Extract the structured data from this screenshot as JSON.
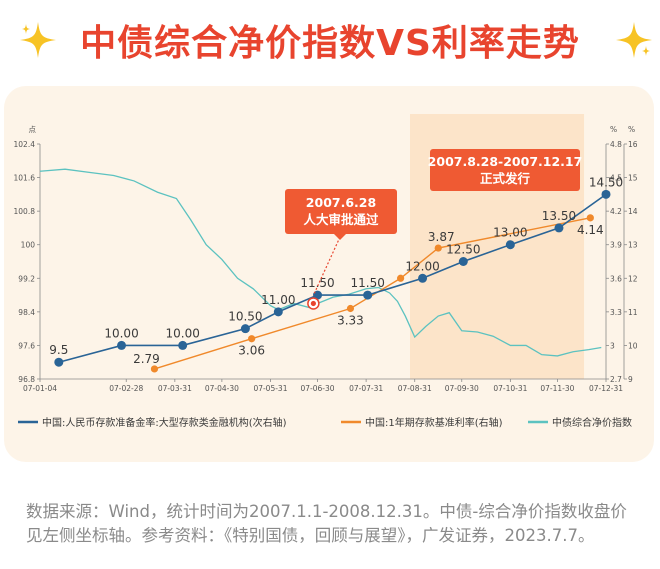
{
  "title": "中债综合净价指数VS利率走势",
  "source_text": "数据来源：Wind，统计时间为2007.1.1-2008.12.31。中债-综合净价指数收盘价见左侧坐标轴。参考资料：《特别国债，回顾与展望》，广发证券，2023.7.7。",
  "colors": {
    "title": "#e8442e",
    "blue": "#2a6496",
    "orange": "#f0892b",
    "teal": "#5cc2c0",
    "callout": "#ef5a33",
    "highlight": "#fbe1c3"
  },
  "chart_data": {
    "type": "line",
    "categories": [
      "07-01-04",
      "07-02-28",
      "07-03-31",
      "07-04-30",
      "07-05-31",
      "07-06-30",
      "07-07-31",
      "07-08-31",
      "07-09-30",
      "07-10-31",
      "07-11-30",
      "07-12-31"
    ],
    "left_axis": {
      "unit": "点",
      "ticks": [
        "96.8",
        "97.6",
        "98.4",
        "99.2",
        "100",
        "100.8",
        "101.6",
        "102.4"
      ],
      "ylim": [
        96.8,
        102.4
      ]
    },
    "right_axis_inner": {
      "unit": "%",
      "ticks": [
        "2.7",
        "3",
        "3.3",
        "3.6",
        "3.9",
        "4.2",
        "4.5",
        "4.8"
      ],
      "ylim": [
        2.7,
        4.8
      ]
    },
    "right_axis_outer": {
      "unit": "%",
      "ticks": [
        "9",
        "10",
        "11",
        "12",
        "13",
        "14",
        "15",
        "16"
      ],
      "ylim": [
        9,
        16
      ]
    },
    "series": [
      {
        "name": "中国:人民币存款准备金率:大型存款类金融机构(次右轴)",
        "axis": "right_outer",
        "x": [
          "2007-01-16",
          "2007-02-25",
          "2007-04-05",
          "2007-05-15",
          "2007-06-05",
          "2007-06-30",
          "2007-08-01",
          "2007-09-05",
          "2007-10-01",
          "2007-10-31",
          "2007-12-01",
          "2007-12-31"
        ],
        "values": [
          9.5,
          10.0,
          10.0,
          10.5,
          11.0,
          11.5,
          11.5,
          12.0,
          12.5,
          13.0,
          13.5,
          14.5
        ],
        "labels": [
          "9.5",
          "10.00",
          "10.00",
          "10.50",
          "11.00",
          "11.50",
          "11.50",
          "12.00",
          "12.50",
          "13.00",
          "13.50",
          "14.50"
        ]
      },
      {
        "name": "中国:1年期存款基准利率(右轴)",
        "axis": "right_inner",
        "x": [
          "2007-03-18",
          "2007-05-19",
          "2007-07-21",
          "2007-08-22",
          "2007-09-15",
          "2007-12-21"
        ],
        "values": [
          2.79,
          3.06,
          3.33,
          3.6,
          3.87,
          4.14
        ],
        "labels": [
          "2.79",
          "3.06",
          "3.33",
          "",
          "3.87",
          "4.14"
        ]
      },
      {
        "name": "中债综合净价指数",
        "axis": "left",
        "x": [
          "2007-01-04",
          "2007-01-20",
          "2007-02-05",
          "2007-02-20",
          "2007-03-05",
          "2007-03-20",
          "2007-04-01",
          "2007-04-10",
          "2007-04-20",
          "2007-04-30",
          "2007-05-10",
          "2007-05-20",
          "2007-05-31",
          "2007-06-05",
          "2007-06-15",
          "2007-06-25",
          "2007-06-30",
          "2007-07-10",
          "2007-07-20",
          "2007-07-31",
          "2007-08-08",
          "2007-08-15",
          "2007-08-20",
          "2007-08-25",
          "2007-08-31",
          "2007-09-07",
          "2007-09-15",
          "2007-09-22",
          "2007-09-30",
          "2007-10-10",
          "2007-10-20",
          "2007-10-31",
          "2007-11-10",
          "2007-11-20",
          "2007-11-30",
          "2007-12-10",
          "2007-12-20",
          "2007-12-28"
        ],
        "values": [
          101.75,
          101.8,
          101.72,
          101.65,
          101.52,
          101.25,
          101.1,
          100.6,
          100.0,
          99.65,
          99.2,
          98.95,
          98.55,
          98.45,
          98.6,
          98.5,
          98.6,
          98.75,
          98.82,
          98.95,
          98.98,
          98.85,
          98.65,
          98.3,
          97.8,
          98.05,
          98.3,
          98.38,
          97.95,
          97.92,
          97.82,
          97.6,
          97.6,
          97.38,
          97.35,
          97.45,
          97.5,
          97.55
        ]
      }
    ],
    "annotations": [
      {
        "text": "2007.6.28\n人大审批通过",
        "date": "2007-06-28"
      },
      {
        "text": "2007.8.28-2007.12.17\n正式发行",
        "range": [
          "2007-08-28",
          "2007-12-17"
        ]
      }
    ],
    "legend": {
      "position": "bottom"
    }
  }
}
